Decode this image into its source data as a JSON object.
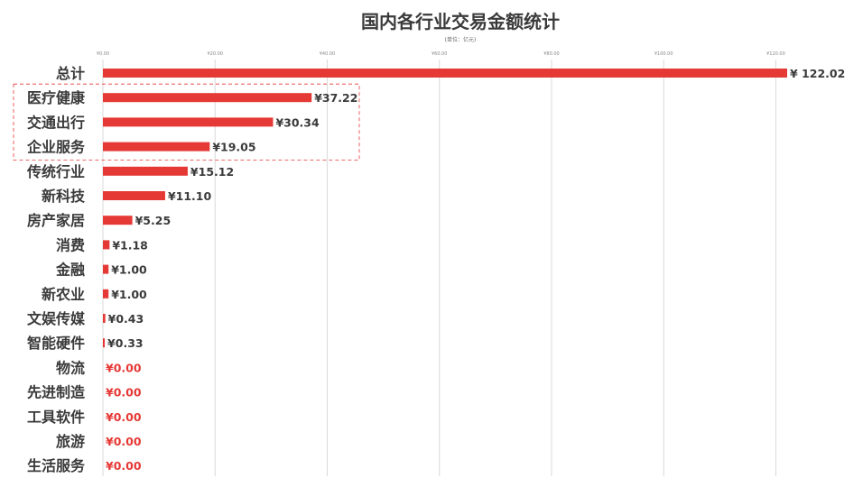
{
  "title": "国内各行业交易金额统计",
  "subtitle": "(单位：亿元)",
  "colors": {
    "bar": "#e53935",
    "grid": "#d9d9d9",
    "text": "#3a3a3a",
    "zero_label": "#e53935",
    "highlight_box": "#e53935"
  },
  "chart_data": {
    "type": "bar",
    "orientation": "horizontal",
    "currency_prefix": "¥",
    "xlim": [
      0,
      122.02
    ],
    "x_ticks": [
      "¥0.00",
      "¥20.00",
      "¥40.00",
      "¥60.00",
      "¥80.00",
      "¥100.00",
      "¥120.00"
    ],
    "x_tick_values": [
      0,
      20,
      40,
      60,
      80,
      100,
      120
    ],
    "grid": true,
    "categories": [
      "总计",
      "医疗健康",
      "交通出行",
      "企业服务",
      "传统行业",
      "新科技",
      "房产家居",
      "消费",
      "金融",
      "新农业",
      "文娱传媒",
      "智能硬件",
      "物流",
      "先进制造",
      "工具软件",
      "旅游",
      "生活服务"
    ],
    "values": [
      122.02,
      37.22,
      30.34,
      19.05,
      15.12,
      11.1,
      5.25,
      1.18,
      1.0,
      1.0,
      0.43,
      0.33,
      0.0,
      0.0,
      0.0,
      0.0,
      0.0
    ],
    "value_labels": [
      "¥ 122.02",
      "¥37.22",
      "¥30.34",
      "¥19.05",
      "¥15.12",
      "¥11.10",
      "¥5.25",
      "¥1.18",
      "¥1.00",
      "¥1.00",
      "¥0.43",
      "¥0.33",
      "¥0.00",
      "¥0.00",
      "¥0.00",
      "¥0.00",
      "¥0.00"
    ],
    "highlighted_categories": [
      "医疗健康",
      "交通出行",
      "企业服务"
    ]
  }
}
